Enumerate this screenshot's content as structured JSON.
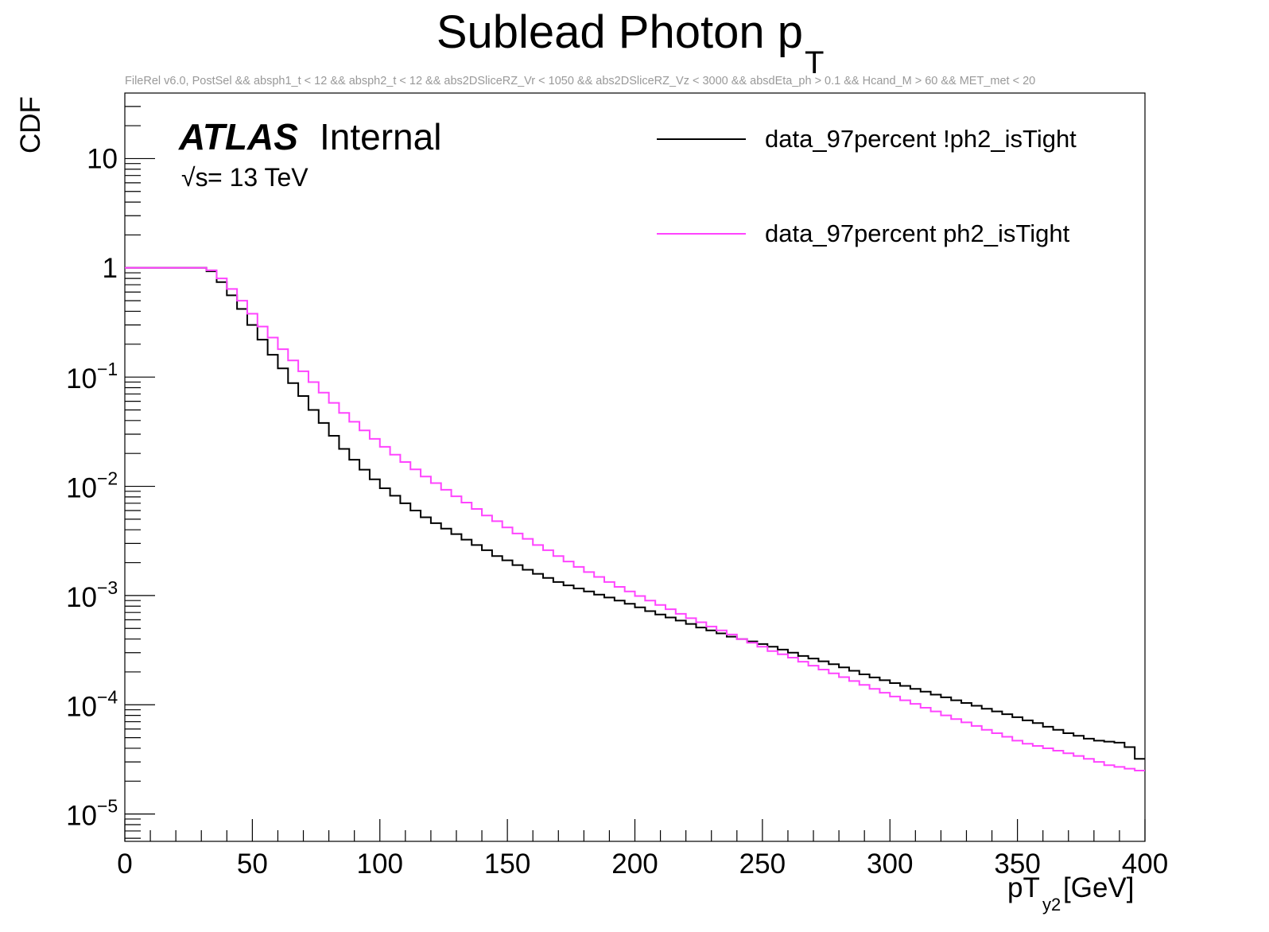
{
  "chart_data": {
    "type": "line",
    "title": "Sublead Photon p",
    "title_sub": "T",
    "subtitle": "FileRel v6.0, PostSel &&  absph1_t < 12 && absph2_t < 12 && abs2DSliceRZ_Vr < 1050 && abs2DSliceRZ_Vz < 3000 && absdEta_ph > 0.1 && Hcand_M > 60 && MET_met < 20",
    "xlabel": "pT",
    "xlabel_sub": "y2",
    "xlabel_unit": " [GeV]",
    "ylabel": "CDF",
    "xlim": [
      0,
      400
    ],
    "ylim_log10": [
      -5.25,
      1.6
    ],
    "yscale": "log",
    "x_ticks": [
      "0",
      "50",
      "100",
      "150",
      "200",
      "250",
      "300",
      "350",
      "400"
    ],
    "y_ticks": [
      {
        "base": "10",
        "exp": "-5",
        "value": 1e-05
      },
      {
        "base": "10",
        "exp": "-4",
        "value": 0.0001
      },
      {
        "base": "10",
        "exp": "-3",
        "value": 0.001
      },
      {
        "base": "10",
        "exp": "-2",
        "value": 0.01
      },
      {
        "base": "10",
        "exp": "-1",
        "value": 0.1
      },
      {
        "base": "1",
        "exp": "",
        "value": 1
      },
      {
        "base": "10",
        "exp": "",
        "value": 10
      }
    ],
    "annotation_atlas": "ATLAS",
    "annotation_internal": "Internal",
    "annotation_energy_sqrt": "√s",
    "annotation_energy": " = 13 TeV",
    "bin_width": 4,
    "series": [
      {
        "name": "data_97percent !ph2_isTight",
        "color": "#000000",
        "x": [
          0,
          4,
          8,
          12,
          16,
          20,
          24,
          28,
          32,
          36,
          40,
          44,
          48,
          52,
          56,
          60,
          64,
          68,
          72,
          76,
          80,
          84,
          88,
          92,
          96,
          100,
          104,
          108,
          112,
          116,
          120,
          124,
          128,
          132,
          136,
          140,
          144,
          148,
          152,
          156,
          160,
          164,
          168,
          172,
          176,
          180,
          184,
          188,
          192,
          196,
          200,
          204,
          208,
          212,
          216,
          220,
          224,
          228,
          232,
          236,
          240,
          244,
          248,
          252,
          256,
          260,
          264,
          268,
          272,
          276,
          280,
          284,
          288,
          292,
          296,
          300,
          304,
          308,
          312,
          316,
          320,
          324,
          328,
          332,
          336,
          340,
          344,
          348,
          352,
          356,
          360,
          364,
          368,
          372,
          376,
          380,
          384,
          388,
          392,
          396
        ],
        "values": [
          1,
          1,
          1,
          1,
          1,
          1,
          1,
          1,
          0.93,
          0.74,
          0.56,
          0.42,
          0.3,
          0.22,
          0.16,
          0.12,
          0.088,
          0.067,
          0.05,
          0.038,
          0.029,
          0.022,
          0.0175,
          0.0142,
          0.0116,
          0.0096,
          0.0082,
          0.007,
          0.006,
          0.0052,
          0.0046,
          0.0041,
          0.00365,
          0.00325,
          0.0029,
          0.0026,
          0.0023,
          0.0021,
          0.0019,
          0.00172,
          0.00158,
          0.00145,
          0.00133,
          0.00124,
          0.00116,
          0.00109,
          0.00102,
          0.00096,
          0.0009,
          0.00084,
          0.00078,
          0.00072,
          0.00067,
          0.00063,
          0.00059,
          0.00055,
          0.00051,
          0.00048,
          0.00045,
          0.00042,
          0.0004,
          0.00038,
          0.00036,
          0.00034,
          0.00032,
          0.0003,
          0.00028,
          0.000265,
          0.00025,
          0.000235,
          0.00022,
          0.000205,
          0.00019,
          0.000178,
          0.000168,
          0.000158,
          0.000149,
          0.00014,
          0.000132,
          0.000124,
          0.000117,
          0.00011,
          0.000104,
          9.8e-05,
          9.2e-05,
          8.7e-05,
          8.2e-05,
          7.7e-05,
          7.2e-05,
          6.8e-05,
          6.3e-05,
          5.9e-05,
          5.5e-05,
          5.2e-05,
          4.9e-05,
          4.7e-05,
          4.6e-05,
          4.5e-05,
          4.1e-05,
          3.2e-05
        ]
      },
      {
        "name": "data_97percent ph2_isTight",
        "color": "#ff44ff",
        "x": [
          0,
          4,
          8,
          12,
          16,
          20,
          24,
          28,
          32,
          36,
          40,
          44,
          48,
          52,
          56,
          60,
          64,
          68,
          72,
          76,
          80,
          84,
          88,
          92,
          96,
          100,
          104,
          108,
          112,
          116,
          120,
          124,
          128,
          132,
          136,
          140,
          144,
          148,
          152,
          156,
          160,
          164,
          168,
          172,
          176,
          180,
          184,
          188,
          192,
          196,
          200,
          204,
          208,
          212,
          216,
          220,
          224,
          228,
          232,
          236,
          240,
          244,
          248,
          252,
          256,
          260,
          264,
          268,
          272,
          276,
          280,
          284,
          288,
          292,
          296,
          300,
          304,
          308,
          312,
          316,
          320,
          324,
          328,
          332,
          336,
          340,
          344,
          348,
          352,
          356,
          360,
          364,
          368,
          372,
          376,
          380,
          384,
          388,
          392,
          396
        ],
        "values": [
          1,
          1,
          1,
          1,
          1,
          1,
          1,
          1,
          0.95,
          0.8,
          0.64,
          0.5,
          0.38,
          0.29,
          0.23,
          0.18,
          0.142,
          0.113,
          0.09,
          0.072,
          0.058,
          0.047,
          0.039,
          0.0325,
          0.0272,
          0.023,
          0.0195,
          0.0167,
          0.0143,
          0.0123,
          0.0107,
          0.0093,
          0.0081,
          0.0071,
          0.0062,
          0.0054,
          0.0048,
          0.0042,
          0.0037,
          0.0033,
          0.0029,
          0.0026,
          0.0023,
          0.00205,
          0.00183,
          0.00164,
          0.00148,
          0.00133,
          0.0012,
          0.00109,
          0.00099,
          0.0009,
          0.00082,
          0.00075,
          0.00068,
          0.00062,
          0.00057,
          0.00052,
          0.00048,
          0.00044,
          0.0004,
          0.00037,
          0.00034,
          0.00031,
          0.00029,
          0.00027,
          0.000248,
          0.000228,
          0.00021,
          0.000194,
          0.000179,
          0.000165,
          0.000152,
          0.00014,
          0.000129,
          0.000119,
          0.00011,
          0.000102,
          9.4e-05,
          8.7e-05,
          8e-05,
          7.4e-05,
          6.9e-05,
          6.4e-05,
          5.9e-05,
          5.5e-05,
          5.1e-05,
          4.7e-05,
          4.4e-05,
          4.2e-05,
          4e-05,
          3.8e-05,
          3.6e-05,
          3.4e-05,
          3.2e-05,
          3e-05,
          2.8e-05,
          2.7e-05,
          2.6e-05,
          2.5e-05
        ]
      }
    ],
    "legend": "top-right"
  }
}
